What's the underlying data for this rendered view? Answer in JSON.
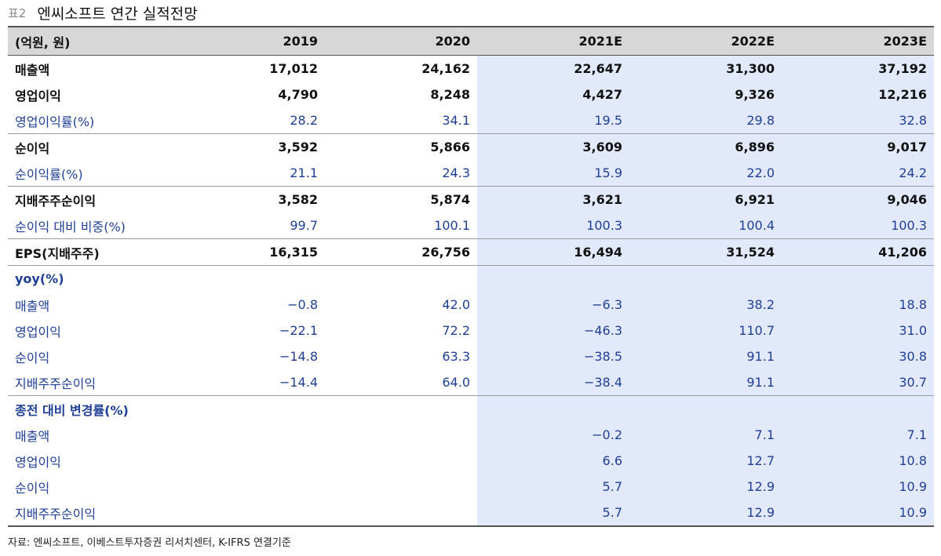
{
  "title_tag": "표2",
  "title": "엔씨소프트 연간 실적전망",
  "header": [
    "(억원, 원)",
    "2019",
    "2020",
    "2021E",
    "2022E",
    "2023E"
  ],
  "rows": [
    {
      "label": "매출액",
      "values": [
        "17,012",
        "24,162",
        "22,647",
        "31,300",
        "37,192"
      ],
      "style": "bold",
      "top": false
    },
    {
      "label": "영업이익",
      "values": [
        "4,790",
        "8,248",
        "4,427",
        "9,326",
        "12,216"
      ],
      "style": "bold",
      "top": false
    },
    {
      "label": "영업이익률(%)",
      "values": [
        "28.2",
        "34.1",
        "19.5",
        "29.8",
        "32.8"
      ],
      "style": "sub",
      "top": false
    },
    {
      "label": "순이익",
      "values": [
        "3,592",
        "5,866",
        "3,609",
        "6,896",
        "9,017"
      ],
      "style": "bold",
      "top": true
    },
    {
      "label": "순이익률(%)",
      "values": [
        "21.1",
        "24.3",
        "15.9",
        "22.0",
        "24.2"
      ],
      "style": "sub",
      "top": false
    },
    {
      "label": "지배주주순이익",
      "values": [
        "3,582",
        "5,874",
        "3,621",
        "6,921",
        "9,046"
      ],
      "style": "bold",
      "top": true
    },
    {
      "label": "순이익 대비 비중(%)",
      "values": [
        "99.7",
        "100.1",
        "100.3",
        "100.4",
        "100.3"
      ],
      "style": "sub",
      "top": false
    },
    {
      "label": "EPS(지배주주)",
      "values": [
        "16,315",
        "26,756",
        "16,494",
        "31,524",
        "41,206"
      ],
      "style": "bold",
      "top": true
    },
    {
      "label": "yoy(%)",
      "values": [
        "",
        "",
        "",
        "",
        ""
      ],
      "style": "sec",
      "top": true
    },
    {
      "label": "매출액",
      "values": [
        "−0.8",
        "42.0",
        "−6.3",
        "38.2",
        "18.8"
      ],
      "style": "sub",
      "top": false
    },
    {
      "label": "영업이익",
      "values": [
        "−22.1",
        "72.2",
        "−46.3",
        "110.7",
        "31.0"
      ],
      "style": "sub",
      "top": false
    },
    {
      "label": "순이익",
      "values": [
        "−14.8",
        "63.3",
        "−38.5",
        "91.1",
        "30.8"
      ],
      "style": "sub",
      "top": false
    },
    {
      "label": "지배주주순이익",
      "values": [
        "−14.4",
        "64.0",
        "−38.4",
        "91.1",
        "30.7"
      ],
      "style": "sub",
      "top": false
    },
    {
      "label": "종전 대비 변경률(%)",
      "values": [
        "",
        "",
        "",
        "",
        ""
      ],
      "style": "sec",
      "top": true
    },
    {
      "label": "매출액",
      "values": [
        "",
        "",
        "−0.2",
        "7.1",
        "7.1"
      ],
      "style": "sub",
      "top": false
    },
    {
      "label": "영업이익",
      "values": [
        "",
        "",
        "6.6",
        "12.7",
        "10.8"
      ],
      "style": "sub",
      "top": false
    },
    {
      "label": "순이익",
      "values": [
        "",
        "",
        "5.7",
        "12.9",
        "10.9"
      ],
      "style": "sub",
      "top": false
    },
    {
      "label": "지배주주순이익",
      "values": [
        "",
        "",
        "5.7",
        "12.9",
        "10.9"
      ],
      "style": "sub",
      "top": false
    }
  ],
  "source": "자료: 엔씨소프트, 이베스트투자증권 리서치센터, K-IFRS 연결기준",
  "colors": {
    "estimate_bg": "#e2e9fb",
    "sub_text": "#1f3f96",
    "header_bg": "#d7d7d7"
  }
}
